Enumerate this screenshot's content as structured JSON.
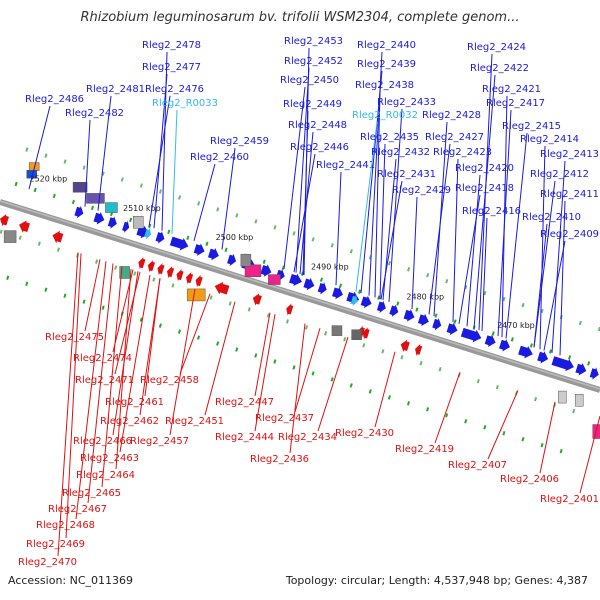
{
  "title": "Rhizobium leguminosarum bv. trifolii WSM2304, complete genom...",
  "footer": {
    "accession": "Accession: NC_011369",
    "topology": "Topology: circular; Length: 4,537,948 bp; Genes: 4,387"
  },
  "colors": {
    "forward": "#1a1ae0",
    "reverse": "#e01010",
    "rna": "#33bbee",
    "backbone": "#888888",
    "tick": "#22aa22"
  },
  "kbp_markers": [
    "2520 kbp",
    "2510 kbp",
    "2500 kbp",
    "2490 kbp",
    "2480 kbp",
    "2470 kbp"
  ],
  "forward_labels": [
    "Rleg2_2478",
    "Rleg2_2477",
    "Rleg2_2476",
    "Rleg2_R0033",
    "Rleg2_2481",
    "Rleg2_2486",
    "Rleg2_2482",
    "Rleg2_2459",
    "Rleg2_2460",
    "Rleg2_2453",
    "Rleg2_2452",
    "Rleg2_2450",
    "Rleg2_2449",
    "Rleg2_2448",
    "Rleg2_2446",
    "Rleg2_2441",
    "Rleg2_2440",
    "Rleg2_2439",
    "Rleg2_2438",
    "Rleg2_2433",
    "Rleg2_R0032",
    "Rleg2_2435",
    "Rleg2_2432",
    "Rleg2_2431",
    "Rleg2_2429",
    "Rleg2_2428",
    "Rleg2_2427",
    "Rleg2_2423",
    "Rleg2_2420",
    "Rleg2_2418",
    "Rleg2_2416",
    "Rleg2_2424",
    "Rleg2_2422",
    "Rleg2_2421",
    "Rleg2_2417",
    "Rleg2_2415",
    "Rleg2_2414",
    "Rleg2_2413",
    "Rleg2_2412",
    "Rleg2_2411",
    "Rleg2_2410",
    "Rleg2_2409"
  ],
  "reverse_labels": [
    "Rleg2_2475",
    "Rleg2_2474",
    "Rleg2_2471",
    "Rleg2_2458",
    "Rleg2_2461",
    "Rleg2_2462",
    "Rleg2_2457",
    "Rleg2_2451",
    "Rleg2_2447",
    "Rleg2_2444",
    "Rleg2_2437",
    "Rleg2_2434",
    "Rleg2_2436",
    "Rleg2_2430",
    "Rleg2_2419",
    "Rleg2_2407",
    "Rleg2_2406",
    "Rleg2_2401",
    "Rleg2_2466",
    "Rleg2_2463",
    "Rleg2_2464",
    "Rleg2_2465",
    "Rleg2_2467",
    "Rleg2_2468",
    "Rleg2_2469",
    "Rleg2_2470"
  ]
}
